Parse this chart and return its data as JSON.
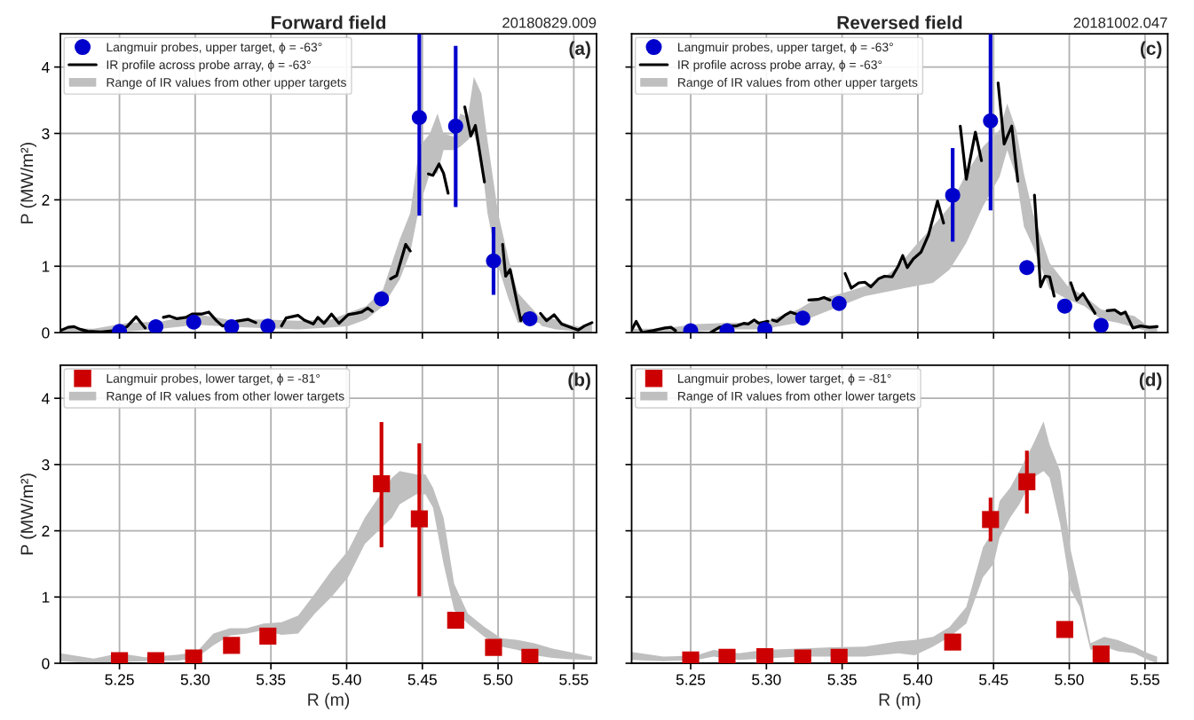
{
  "chart_data": [
    {
      "type": "scatter",
      "title": "Forward field",
      "ylabel": "P (MW/m²)",
      "annotations": [
        "(a)",
        "20180829.009"
      ],
      "xlim": [
        5.211,
        5.565
      ],
      "ylim": [
        0,
        4.5
      ],
      "xticks": [
        5.25,
        5.3,
        5.35,
        5.4,
        5.45,
        5.5,
        5.55
      ],
      "yticks": [
        0,
        1,
        2,
        3,
        4
      ],
      "grid": true,
      "legend": "top left",
      "tick_labels": "y",
      "series": [
        {
          "name": "Langmuir probes, upper target, ϕ = -63°",
          "color": "#0000cc",
          "marker": "circle",
          "x": [
            5.25,
            5.274,
            5.299,
            5.324,
            5.348,
            5.423,
            5.448,
            5.472,
            5.497,
            5.521
          ],
          "values": [
            0.02,
            0.09,
            0.16,
            0.09,
            0.1,
            0.51,
            3.24,
            3.11,
            1.08,
            0.21
          ],
          "errors": [
            null,
            null,
            null,
            null,
            null,
            null,
            [
              1.76,
              4.5
            ],
            [
              1.89,
              4.32
            ],
            [
              0.57,
              1.59
            ],
            null
          ]
        },
        {
          "type": "line",
          "name": "IR profile across probe array, ϕ = -63°",
          "color": "#000000",
          "line_style": "solid",
          "x": [
            5.211,
            5.216,
            5.22,
            5.224,
            5.229,
            5.238,
            5.247,
            5.255,
            5.261,
            5.267,
            5.273,
            5.279,
            5.283,
            5.288,
            5.294,
            5.298,
            5.304,
            5.309,
            5.314,
            5.318,
            5.327,
            5.335,
            5.34,
            5.348,
            5.357,
            5.36,
            5.368,
            5.372,
            5.378,
            5.381,
            5.385,
            5.39,
            5.395,
            5.401,
            5.406,
            5.41,
            5.414,
            5.417,
            5.423,
            5.429,
            5.433,
            5.439,
            5.442,
            5.448,
            5.454,
            5.457,
            5.461,
            5.464,
            5.467,
            5.472,
            5.478,
            5.482,
            5.485,
            5.491,
            5.497,
            5.503,
            5.505,
            5.508,
            5.515,
            5.518,
            5.522,
            5.528,
            5.532,
            5.537,
            5.542,
            5.548,
            5.553,
            5.557,
            5.562
          ],
          "values": [
            0.03,
            0.08,
            0.09,
            0.05,
            0.02,
            0.01,
            0.03,
            0.09,
            0.24,
            0.07,
            null,
            0.23,
            0.25,
            0.21,
            0.23,
            0.28,
            0.28,
            0.31,
            0.18,
            0.1,
            0.17,
            0.2,
            0.15,
            null,
            0.1,
            0.22,
            0.26,
            0.19,
            0.13,
            0.23,
            0.14,
            0.28,
            0.14,
            0.27,
            0.29,
            0.31,
            0.37,
            0.32,
            null,
            0.81,
            0.86,
            1.33,
            1.23,
            null,
            2.39,
            2.37,
            2.54,
            2.4,
            2.1,
            null,
            3.4,
            2.96,
            3.12,
            2.27,
            null,
            1.33,
            0.85,
            0.95,
            0.18,
            0.28,
            null,
            0.29,
            0.18,
            0.27,
            0.13,
            0.08,
            0.04,
            0.1,
            0.15
          ]
        },
        {
          "type": "area",
          "name": "Range of IR values from other upper targets",
          "color": "#bfbfbf",
          "x": [
            5.211,
            5.233,
            5.256,
            5.278,
            5.301,
            5.323,
            5.345,
            5.368,
            5.39,
            5.401,
            5.413,
            5.424,
            5.435,
            5.442,
            5.448,
            5.455,
            5.46,
            5.464,
            5.471,
            5.475,
            5.48,
            5.484,
            5.489,
            5.493,
            5.5,
            5.507,
            5.513,
            5.527,
            5.529,
            5.538,
            5.547,
            5.556,
            5.562
          ],
          "values": [
            null,
            null,
            null,
            null,
            null,
            null,
            null,
            null,
            null,
            null,
            null,
            null,
            null,
            null,
            null,
            null,
            null,
            null,
            null,
            null,
            null,
            null,
            null,
            null,
            null,
            null,
            null,
            null,
            null,
            null,
            null,
            null,
            null
          ],
          "lower": [
            0,
            0,
            0.02,
            0.06,
            0.12,
            0.09,
            0.07,
            0.05,
            0.08,
            0.1,
            0.2,
            0.4,
            0.8,
            1.2,
            1.9,
            2.4,
            2.4,
            2.75,
            2.75,
            2.8,
            2.9,
            3.0,
            2.6,
            1.8,
            1.0,
            0.5,
            0.15,
            0.15,
            0.1,
            0.05,
            0.03,
            0,
            0
          ],
          "upper": [
            0.07,
            0.06,
            0.15,
            0.17,
            0.28,
            0.19,
            0.2,
            0.18,
            0.2,
            0.3,
            0.4,
            0.65,
            1.4,
            1.8,
            2.8,
            3.0,
            3.3,
            3.0,
            2.95,
            3.3,
            3.25,
            3.85,
            3.6,
            2.9,
            1.8,
            1.1,
            0.6,
            0.25,
            0.25,
            0.2,
            0.12,
            0.08,
            0.15
          ]
        }
      ]
    },
    {
      "type": "scatter",
      "title": "Reversed field",
      "annotations": [
        "(c)",
        "20181002.047"
      ],
      "xlim": [
        5.211,
        5.565
      ],
      "ylim": [
        0,
        4.5
      ],
      "xticks": [
        5.25,
        5.3,
        5.35,
        5.4,
        5.45,
        5.5,
        5.55
      ],
      "yticks": [
        0,
        1,
        2,
        3,
        4
      ],
      "grid": true,
      "legend": "top left",
      "tick_labels": false,
      "series": [
        {
          "name": "Langmuir probes, upper target, ϕ = -63°",
          "color": "#0000cc",
          "marker": "circle",
          "x": [
            5.25,
            5.274,
            5.299,
            5.324,
            5.348,
            5.423,
            5.448,
            5.472,
            5.497,
            5.521
          ],
          "values": [
            0.03,
            0.03,
            0.05,
            0.22,
            0.44,
            2.07,
            3.19,
            0.98,
            0.4,
            0.11
          ],
          "errors": [
            null,
            null,
            null,
            null,
            null,
            [
              1.37,
              2.78
            ],
            [
              1.84,
              4.5
            ],
            null,
            null,
            null
          ]
        },
        {
          "type": "line",
          "name": "IR profile across probe array, ϕ = -63°",
          "color": "#000000",
          "line_style": "solid",
          "x": [
            5.211,
            5.214,
            5.218,
            5.225,
            5.233,
            5.237,
            5.24,
            5.25,
            5.263,
            5.269,
            5.276,
            5.28,
            5.285,
            5.288,
            5.292,
            5.295,
            5.301,
            5.302,
            5.304,
            5.307,
            5.312,
            5.316,
            5.321,
            5.325,
            5.328,
            5.334,
            5.338,
            5.342,
            5.347,
            5.352,
            5.356,
            5.361,
            5.365,
            5.369,
            5.374,
            5.378,
            5.383,
            5.387,
            5.39,
            5.393,
            5.397,
            5.402,
            5.407,
            5.413,
            5.417,
            5.422,
            5.428,
            5.432,
            5.438,
            5.442,
            5.448,
            5.453,
            5.457,
            5.462,
            5.466,
            5.472,
            5.477,
            5.481,
            5.484,
            5.487,
            5.49,
            5.496,
            5.501,
            5.505,
            5.509,
            5.513,
            5.517,
            5.521,
            5.525,
            5.53,
            5.534,
            5.537,
            5.542,
            5.547,
            5.553,
            5.558
          ],
          "values": [
            0.04,
            0.17,
            0.0,
            0.03,
            0.07,
            0.08,
            0.03,
            null,
            0.0,
            0.08,
            0.1,
            0.1,
            0.14,
            0.13,
            0.19,
            0.14,
            0.17,
            null,
            0.19,
            0.17,
            0.26,
            0.31,
            0.27,
            null,
            0.49,
            0.5,
            0.53,
            0.49,
            null,
            0.89,
            0.67,
            0.75,
            0.76,
            0.69,
            0.81,
            0.85,
            0.84,
            1.0,
            1.16,
            0.98,
            1.11,
            1.21,
            1.47,
            1.98,
            1.65,
            null,
            3.11,
            2.31,
            3.02,
            2.59,
            null,
            3.76,
            2.84,
            3.11,
            2.28,
            null,
            2.07,
            0.69,
            0.85,
            0.84,
            0.55,
            null,
            0.75,
            0.49,
            0.59,
            0.44,
            0.29,
            null,
            0.33,
            0.34,
            0.28,
            0.31,
            0.07,
            0.1,
            0.08,
            0.09
          ]
        },
        {
          "type": "area",
          "name": "Range of IR values from other upper targets",
          "color": "#bfbfbf",
          "x": [
            5.211,
            5.232,
            5.254,
            5.276,
            5.298,
            5.309,
            5.321,
            5.332,
            5.343,
            5.354,
            5.365,
            5.376,
            5.387,
            5.398,
            5.41,
            5.421,
            5.432,
            5.443,
            5.454,
            5.459,
            5.465,
            5.47,
            5.476,
            5.487,
            5.499,
            5.51,
            5.521,
            5.532,
            5.543,
            5.552,
            5.558
          ],
          "values": [
            null,
            null,
            null,
            null,
            null,
            null,
            null,
            null,
            null,
            null,
            null,
            null,
            null,
            null,
            null,
            null,
            null,
            null,
            null,
            null,
            null,
            null,
            null,
            null,
            null,
            null,
            null,
            null,
            null,
            null,
            null
          ],
          "lower": [
            0,
            0,
            0.02,
            0.05,
            0.05,
            0.1,
            0.15,
            0.25,
            0.35,
            0.45,
            0.55,
            0.6,
            0.65,
            0.7,
            0.75,
            0.95,
            1.35,
            1.9,
            2.35,
            2.75,
            2.35,
            1.6,
            1.3,
            0.65,
            0.5,
            0.4,
            0.2,
            0.15,
            0.08,
            0.02,
            0
          ],
          "upper": [
            0.06,
            0.06,
            0.13,
            0.15,
            0.15,
            0.25,
            0.35,
            0.5,
            0.55,
            0.62,
            0.7,
            0.8,
            1.0,
            1.3,
            1.6,
            1.9,
            2.4,
            2.8,
            3.05,
            3.45,
            3.05,
            2.4,
            1.8,
            1.05,
            0.7,
            0.55,
            0.35,
            0.3,
            0.25,
            0.1,
            0.12
          ]
        }
      ]
    },
    {
      "type": "scatter",
      "xlabel": "R (m)",
      "ylabel": "P (MW/m²)",
      "annotations": [
        "(b)"
      ],
      "xlim": [
        5.211,
        5.565
      ],
      "ylim": [
        0,
        4.5
      ],
      "xticks": [
        5.25,
        {
          "value": 5.3,
          "label": "5.30"
        },
        5.35,
        {
          "value": 5.4,
          "label": "5.40"
        },
        5.45,
        {
          "value": 5.5,
          "label": "5.50"
        },
        5.55
      ],
      "yticks": [
        0,
        1,
        2,
        3,
        4
      ],
      "grid": true,
      "legend": "top left",
      "series": [
        {
          "name": "Langmuir probes, lower target, ϕ = -81°",
          "color": "#cc0000",
          "marker": "square",
          "x": [
            5.25,
            5.274,
            5.299,
            5.324,
            5.348,
            5.423,
            5.448,
            5.472,
            5.497,
            5.521
          ],
          "values": [
            0.04,
            0.04,
            0.08,
            0.27,
            0.41,
            2.71,
            2.18,
            0.65,
            0.24,
            0.09
          ],
          "errors": [
            null,
            null,
            null,
            null,
            null,
            [
              1.75,
              3.64
            ],
            [
              1.01,
              3.32
            ],
            null,
            null,
            null
          ]
        },
        {
          "type": "area",
          "name": "Range of IR values from other lower targets",
          "color": "#bfbfbf",
          "x": [
            5.211,
            5.233,
            5.25,
            5.267,
            5.289,
            5.301,
            5.312,
            5.323,
            5.334,
            5.345,
            5.357,
            5.368,
            5.379,
            5.39,
            5.401,
            5.412,
            5.43,
            5.435,
            5.446,
            5.452,
            5.457,
            5.464,
            5.471,
            5.48,
            5.491,
            5.502,
            5.513,
            5.524,
            5.536,
            5.547,
            5.562
          ],
          "values": [
            null,
            null,
            null,
            null,
            null,
            null,
            null,
            null,
            null,
            null,
            null,
            null,
            null,
            null,
            null,
            null,
            null,
            null,
            null,
            null,
            null,
            null,
            null,
            null,
            null,
            null,
            null,
            null,
            null,
            null,
            null
          ],
          "lower": [
            0.03,
            0,
            0.02,
            0.03,
            0.04,
            0.08,
            0.27,
            0.42,
            0.45,
            0.5,
            0.43,
            0.45,
            0.75,
            1.0,
            1.3,
            1.8,
            2.2,
            2.4,
            2.55,
            2.55,
            2.35,
            1.5,
            0.8,
            0.6,
            0.4,
            0.25,
            0.2,
            0.12,
            0.08,
            0.06,
            0.05
          ],
          "upper": [
            0.15,
            0.07,
            0.15,
            0.09,
            0.13,
            0.17,
            0.45,
            0.53,
            0.53,
            0.6,
            0.62,
            0.72,
            1.05,
            1.4,
            1.7,
            2.2,
            2.8,
            2.9,
            2.85,
            2.85,
            2.65,
            2.2,
            1.2,
            0.75,
            0.55,
            0.38,
            0.35,
            0.3,
            0.22,
            0.17,
            0.1
          ]
        }
      ]
    },
    {
      "type": "scatter",
      "xlabel": "R (m)",
      "annotations": [
        "(d)"
      ],
      "xlim": [
        5.211,
        5.565
      ],
      "ylim": [
        0,
        4.5
      ],
      "xticks": [
        5.25,
        {
          "value": 5.3,
          "label": "5.30"
        },
        5.35,
        {
          "value": 5.4,
          "label": "5.40"
        },
        5.45,
        {
          "value": 5.5,
          "label": "5.50"
        },
        5.55
      ],
      "yticks": [
        0,
        1,
        2,
        3,
        4
      ],
      "grid": true,
      "legend": "top left",
      "tick_labels": "x",
      "series": [
        {
          "name": "Langmuir probes, lower target, ϕ = -81°",
          "color": "#cc0000",
          "marker": "square",
          "x": [
            5.25,
            5.274,
            5.299,
            5.324,
            5.348,
            5.423,
            5.448,
            5.472,
            5.497,
            5.521
          ],
          "values": [
            0.05,
            0.09,
            0.1,
            0.08,
            0.09,
            0.32,
            2.17,
            2.74,
            0.51,
            0.14
          ],
          "errors": [
            null,
            null,
            null,
            null,
            null,
            null,
            [
              1.84,
              2.5
            ],
            [
              2.26,
              3.21
            ],
            null,
            null
          ]
        },
        {
          "type": "area",
          "name": "Range of IR values from other lower targets",
          "color": "#bfbfbf",
          "x": [
            5.211,
            5.232,
            5.254,
            5.265,
            5.282,
            5.298,
            5.321,
            5.343,
            5.365,
            5.387,
            5.398,
            5.41,
            5.421,
            5.432,
            5.443,
            5.45,
            5.454,
            5.461,
            5.467,
            5.476,
            5.483,
            5.487,
            5.494,
            5.501,
            5.507,
            5.514,
            5.523,
            5.532,
            5.543,
            5.552,
            5.558
          ],
          "values": [
            null,
            null,
            null,
            null,
            null,
            null,
            null,
            null,
            null,
            null,
            null,
            null,
            null,
            null,
            null,
            null,
            null,
            null,
            null,
            null,
            null,
            null,
            null,
            null,
            null,
            null,
            null,
            null,
            null,
            null,
            null
          ],
          "lower": [
            0.05,
            0.03,
            0.05,
            0.1,
            0.05,
            0.07,
            0.1,
            0.1,
            0.1,
            0.15,
            0.12,
            0.25,
            0.4,
            0.6,
            1.3,
            1.5,
            1.9,
            2.2,
            2.4,
            2.8,
            2.9,
            2.8,
            2.1,
            1.1,
            0.85,
            0.2,
            0.25,
            0.18,
            0.15,
            0.05,
            0
          ],
          "upper": [
            0.17,
            0.1,
            0.12,
            0.2,
            0.15,
            0.2,
            0.22,
            0.24,
            0.25,
            0.33,
            0.35,
            0.4,
            0.55,
            0.85,
            1.75,
            2.0,
            2.45,
            2.65,
            2.9,
            3.3,
            3.65,
            3.3,
            2.9,
            1.7,
            1.1,
            0.3,
            0.4,
            0.35,
            0.25,
            0.15,
            0.1
          ]
        }
      ]
    }
  ]
}
